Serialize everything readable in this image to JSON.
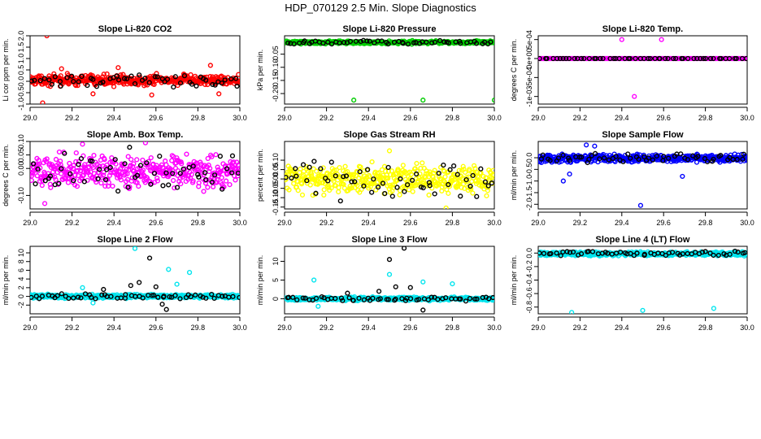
{
  "figure": {
    "title": "HDP_070129  2.5 Min. Slope Diagnostics"
  },
  "chart_data": [
    {
      "type": "scatter",
      "title": "Slope Li-820 CO2",
      "ylabel": "Li cor ppm per min.",
      "xlim": [
        29.0,
        30.0
      ],
      "ylim": [
        -1.0,
        2.0
      ],
      "x_ticks": [
        "29.0",
        "29.2",
        "29.4",
        "29.6",
        "29.8",
        "30.0"
      ],
      "y_ticks": [
        "-1.0",
        "-0.5",
        "0.0",
        "0.5",
        "1.0",
        "1.5",
        "2.0"
      ],
      "color": "#ff0000",
      "band_center": 0.05,
      "band_halfwidth": 0.32,
      "outliers": [
        {
          "x": 29.08,
          "y": 2.0
        },
        {
          "x": 29.06,
          "y": -0.95
        },
        {
          "x": 29.15,
          "y": 0.55
        },
        {
          "x": 29.3,
          "y": -0.55
        },
        {
          "x": 29.58,
          "y": -0.6
        },
        {
          "x": 29.86,
          "y": 0.7
        },
        {
          "x": 29.42,
          "y": 0.6
        },
        {
          "x": 29.9,
          "y": -0.55
        }
      ]
    },
    {
      "type": "scatter",
      "title": "Slope Li-820 Pressure",
      "ylabel": "kPa per min.",
      "xlim": [
        29.0,
        30.0
      ],
      "ylim": [
        -0.24,
        0.02
      ],
      "x_ticks": [
        "29.0",
        "29.2",
        "29.4",
        "29.6",
        "29.8",
        "30.0"
      ],
      "y_ticks": [
        "-0.20",
        "-0.15",
        "-0.10",
        "-0.05"
      ],
      "color": "#00cc00",
      "band_center": -0.005,
      "band_halfwidth": 0.008,
      "outliers": [
        {
          "x": 29.33,
          "y": -0.225
        },
        {
          "x": 29.66,
          "y": -0.225
        },
        {
          "x": 30.0,
          "y": -0.225
        }
      ]
    },
    {
      "type": "scatter",
      "title": "Slope Li-820 Temp.",
      "ylabel": "degrees C per min.",
      "xlim": [
        29.0,
        30.0
      ],
      "ylim": [
        -0.0012,
        0.0006
      ],
      "x_ticks": [
        "29.0",
        "29.2",
        "29.4",
        "29.6",
        "29.8",
        "30.0"
      ],
      "y_ticks": [
        "-1e-03",
        "-5e-04",
        "0e+00",
        "5e-04"
      ],
      "color": "#ff00ff",
      "band_center": 0.0,
      "band_halfwidth": 0.0,
      "outliers": [
        {
          "x": 29.4,
          "y": 0.0005
        },
        {
          "x": 29.59,
          "y": 0.0005
        },
        {
          "x": 29.46,
          "y": -0.001
        }
      ]
    },
    {
      "type": "scatter",
      "title": "Slope Amb. Box Temp.",
      "ylabel": "degrees C per min.",
      "xlim": [
        29.0,
        30.0
      ],
      "ylim": [
        -0.15,
        0.1
      ],
      "x_ticks": [
        "29.0",
        "29.2",
        "29.4",
        "29.6",
        "29.8",
        "30.0"
      ],
      "y_ticks": [
        "-0.10",
        "0.00",
        "0.05",
        "0.10"
      ],
      "color": "#ff00ff",
      "band_center": -0.01,
      "band_halfwidth": 0.09,
      "outliers": [
        {
          "x": 29.55,
          "y": 0.095
        },
        {
          "x": 29.07,
          "y": -0.13
        },
        {
          "x": 29.25,
          "y": 0.09
        }
      ]
    },
    {
      "type": "scatter",
      "title": "Slope Gas Stream RH",
      "ylabel": "percent per min.",
      "xlim": [
        29.0,
        30.0
      ],
      "ylim": [
        -0.16,
        0.2
      ],
      "x_ticks": [
        "29.0",
        "29.2",
        "29.4",
        "29.6",
        "29.8",
        "30.0"
      ],
      "y_ticks": [
        "-0.15",
        "-0.10",
        "-0.05",
        "0.00",
        "0.05",
        "0.10"
      ],
      "color": "#ffff00",
      "band_center": 0.0,
      "band_halfwidth": 0.11,
      "outliers": [
        {
          "x": 29.77,
          "y": -0.155
        },
        {
          "x": 29.5,
          "y": 0.15
        }
      ]
    },
    {
      "type": "scatter",
      "title": "Slope Sample Flow",
      "ylabel": "ml/min per min.",
      "xlim": [
        29.0,
        30.0
      ],
      "ylim": [
        -2.2,
        0.7
      ],
      "x_ticks": [
        "29.0",
        "29.2",
        "29.4",
        "29.6",
        "29.8",
        "30.0"
      ],
      "y_ticks": [
        "-2.0",
        "-1.5",
        "-1.0",
        "-0.5",
        "0.0"
      ],
      "color": "#0000ff",
      "band_center": -0.02,
      "band_halfwidth": 0.22,
      "outliers": [
        {
          "x": 29.49,
          "y": -2.05
        },
        {
          "x": 29.23,
          "y": 0.55
        },
        {
          "x": 29.27,
          "y": 0.5
        },
        {
          "x": 29.12,
          "y": -1.0
        },
        {
          "x": 29.15,
          "y": -0.7
        },
        {
          "x": 29.69,
          "y": -0.8
        }
      ]
    },
    {
      "type": "scatter",
      "title": "Slope Line 2 Flow",
      "ylabel": "ml/min per min.",
      "xlim": [
        29.0,
        30.0
      ],
      "ylim": [
        -4.0,
        11.5
      ],
      "x_ticks": [
        "29.0",
        "29.2",
        "29.4",
        "29.6",
        "29.8",
        "30.0"
      ],
      "y_ticks": [
        "-2",
        "0",
        "2",
        "4",
        "6",
        "8",
        "10"
      ],
      "color": "#00e5ee",
      "band_center": 0.0,
      "band_halfwidth": 0.6,
      "outliers": [
        {
          "x": 29.5,
          "y": 11.0
        },
        {
          "x": 29.66,
          "y": 6.2
        },
        {
          "x": 29.76,
          "y": 5.5
        },
        {
          "x": 29.25,
          "y": 2.0
        },
        {
          "x": 29.7,
          "y": 2.8
        },
        {
          "x": 29.3,
          "y": -1.5
        }
      ],
      "dark_outliers": [
        {
          "x": 29.57,
          "y": 8.8
        },
        {
          "x": 29.52,
          "y": 3.2
        },
        {
          "x": 29.48,
          "y": 2.5
        },
        {
          "x": 29.65,
          "y": -3.0
        },
        {
          "x": 29.63,
          "y": -1.8
        },
        {
          "x": 29.6,
          "y": 2.2
        },
        {
          "x": 29.35,
          "y": 1.6
        }
      ]
    },
    {
      "type": "scatter",
      "title": "Slope Line 3 Flow",
      "ylabel": "ml/min per min.",
      "xlim": [
        29.0,
        30.0
      ],
      "ylim": [
        -4.0,
        14.0
      ],
      "x_ticks": [
        "29.0",
        "29.2",
        "29.4",
        "29.6",
        "29.8",
        "30.0"
      ],
      "y_ticks": [
        "0",
        "5",
        "10"
      ],
      "color": "#00e5ee",
      "band_center": 0.0,
      "band_halfwidth": 0.6,
      "outliers": [
        {
          "x": 29.14,
          "y": 5.0
        },
        {
          "x": 29.66,
          "y": 4.5
        },
        {
          "x": 29.8,
          "y": 4.0
        },
        {
          "x": 29.5,
          "y": 6.5
        },
        {
          "x": 29.16,
          "y": -2.0
        }
      ],
      "dark_outliers": [
        {
          "x": 29.57,
          "y": 13.5
        },
        {
          "x": 29.5,
          "y": 10.5
        },
        {
          "x": 29.53,
          "y": 3.2
        },
        {
          "x": 29.45,
          "y": 2.0
        },
        {
          "x": 29.6,
          "y": 3.0
        },
        {
          "x": 29.66,
          "y": -3.0
        },
        {
          "x": 29.3,
          "y": 1.5
        }
      ]
    },
    {
      "type": "scatter",
      "title": "Slope Line 4 (LT) Flow",
      "ylabel": "ml/min per min.",
      "xlim": [
        29.0,
        30.0
      ],
      "ylim": [
        -0.9,
        0.1
      ],
      "x_ticks": [
        "29.0",
        "29.2",
        "29.4",
        "29.6",
        "29.8",
        "30.0"
      ],
      "y_ticks": [
        "-0.8",
        "-0.6",
        "-0.4",
        "-0.2",
        "0.0"
      ],
      "color": "#00e5ee",
      "band_center": -0.01,
      "band_halfwidth": 0.04,
      "outliers": [
        {
          "x": 29.16,
          "y": -0.88
        },
        {
          "x": 29.5,
          "y": -0.85
        },
        {
          "x": 29.84,
          "y": -0.82
        }
      ]
    }
  ]
}
